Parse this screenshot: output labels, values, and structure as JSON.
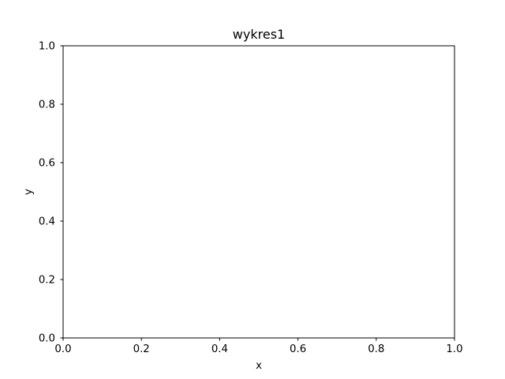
{
  "chart_data": {
    "type": "line",
    "title": "wykres1",
    "xlabel": "x",
    "ylabel": "y",
    "xlim": [
      0,
      1
    ],
    "ylim": [
      0,
      1
    ],
    "xticks": [
      "0.0",
      "0.2",
      "0.4",
      "0.6",
      "0.8",
      "1.0"
    ],
    "yticks": [
      "0.0",
      "0.2",
      "0.4",
      "0.6",
      "0.8",
      "1.0"
    ],
    "grid": false,
    "series": []
  }
}
